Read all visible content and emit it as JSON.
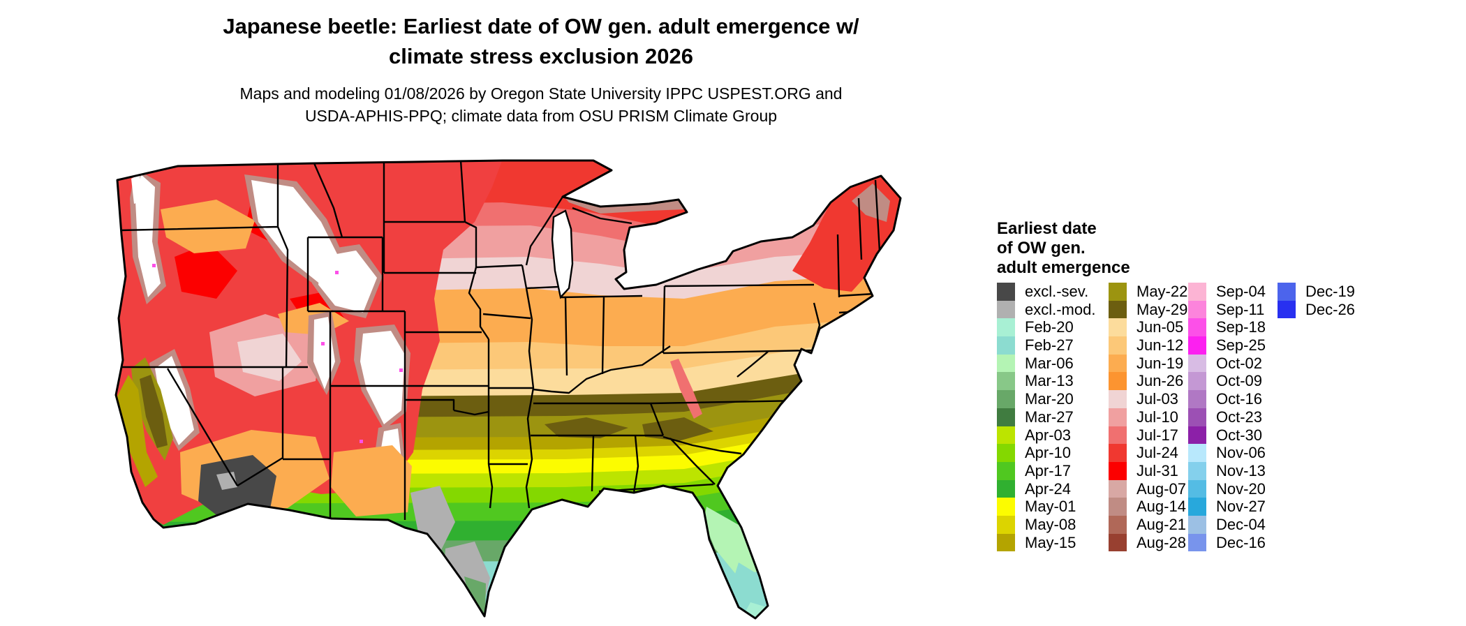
{
  "header": {
    "title_line1": "Japanese beetle: Earliest date of OW gen. adult emergence w/",
    "title_line2": "climate stress exclusion 2026",
    "subtitle_line1": "Maps and modeling 01/08/2026 by Oregon State University IPPC USPEST.ORG and",
    "subtitle_line2": "USDA-APHIS-PPQ; climate data from OSU PRISM Climate Group"
  },
  "legend": {
    "title_lines": [
      "Earliest date",
      "of OW gen.",
      "adult emergence"
    ],
    "columns": [
      {
        "items": [
          {
            "label": "excl.-sev.",
            "color": "#484848"
          },
          {
            "label": "excl.-mod.",
            "color": "#b0b0b0"
          },
          {
            "label": "Feb-20",
            "color": "#a8f0d4"
          },
          {
            "label": "Feb-27",
            "color": "#8cdcd0"
          },
          {
            "label": "Mar-06",
            "color": "#b4f4b4"
          },
          {
            "label": "Mar-13",
            "color": "#88c888"
          },
          {
            "label": "Mar-20",
            "color": "#68a868"
          },
          {
            "label": "Mar-27",
            "color": "#407c40"
          },
          {
            "label": "Apr-03",
            "color": "#bce400"
          },
          {
            "label": "Apr-10",
            "color": "#84d800"
          },
          {
            "label": "Apr-17",
            "color": "#50c820"
          },
          {
            "label": "Apr-24",
            "color": "#30b030"
          },
          {
            "label": "May-01",
            "color": "#fcfc00"
          },
          {
            "label": "May-08",
            "color": "#dcd400"
          },
          {
            "label": "May-15",
            "color": "#b4a400"
          }
        ]
      },
      {
        "items": [
          {
            "label": "May-22",
            "color": "#9c9410"
          },
          {
            "label": "May-29",
            "color": "#6c5e10"
          },
          {
            "label": "Jun-05",
            "color": "#fcdc9c"
          },
          {
            "label": "Jun-12",
            "color": "#fcc878"
          },
          {
            "label": "Jun-19",
            "color": "#fcac50"
          },
          {
            "label": "Jun-26",
            "color": "#fc9430"
          },
          {
            "label": "Jul-03",
            "color": "#f0d4d4"
          },
          {
            "label": "Jul-10",
            "color": "#f0a0a0"
          },
          {
            "label": "Jul-17",
            "color": "#f07070"
          },
          {
            "label": "Jul-24",
            "color": "#f03830"
          },
          {
            "label": "Jul-31",
            "color": "#fc0000"
          },
          {
            "label": "Aug-07",
            "color": "#d8a8a4"
          },
          {
            "label": "Aug-14",
            "color": "#c08c84"
          },
          {
            "label": "Aug-21",
            "color": "#b06858"
          },
          {
            "label": "Aug-28",
            "color": "#984030"
          }
        ]
      },
      {
        "items": [
          {
            "label": "Sep-04",
            "color": "#fcb4d4"
          },
          {
            "label": "Sep-11",
            "color": "#fc84dc"
          },
          {
            "label": "Sep-18",
            "color": "#fc50e8"
          },
          {
            "label": "Sep-25",
            "color": "#fc20f0"
          },
          {
            "label": "Oct-02",
            "color": "#d8bce4"
          },
          {
            "label": "Oct-09",
            "color": "#c498d4"
          },
          {
            "label": "Oct-16",
            "color": "#b078c4"
          },
          {
            "label": "Oct-23",
            "color": "#9c50b4"
          },
          {
            "label": "Oct-30",
            "color": "#8c20a8"
          },
          {
            "label": "Nov-06",
            "color": "#b8e8fc"
          },
          {
            "label": "Nov-13",
            "color": "#84d0ec"
          },
          {
            "label": "Nov-20",
            "color": "#54bce4"
          },
          {
            "label": "Nov-27",
            "color": "#28a8dc"
          },
          {
            "label": "Dec-04",
            "color": "#9cc0e4"
          },
          {
            "label": "Dec-16",
            "color": "#7894ec"
          }
        ]
      },
      {
        "items": [
          {
            "label": "Dec-19",
            "color": "#4c64ec"
          },
          {
            "label": "Dec-26",
            "color": "#2830f0"
          }
        ]
      }
    ]
  }
}
